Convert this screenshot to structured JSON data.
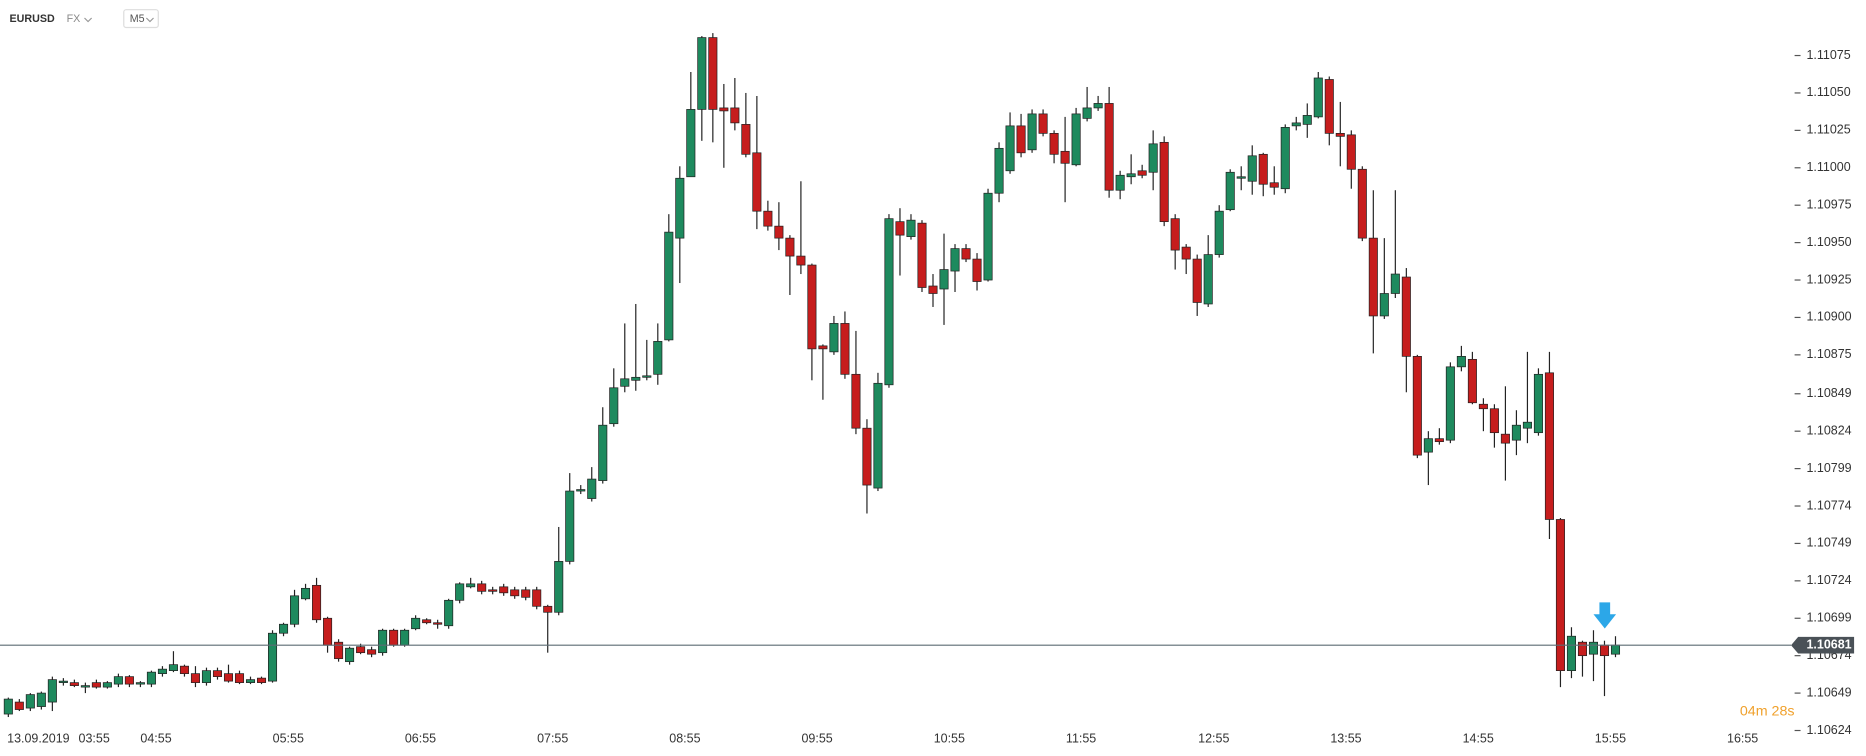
{
  "chart_data": {
    "type": "candlestick",
    "symbol": "EURUSD",
    "market": "FX",
    "timeframe": "M5",
    "up_color": "#1e8a5e",
    "down_color": "#c61d1d",
    "current_price": 1.10681,
    "countdown": "04m 28s",
    "x_labels": [
      "13.09.2019",
      "03:55",
      "04:55",
      "05:55",
      "06:55",
      "07:55",
      "08:55",
      "09:55",
      "10:55",
      "11:55",
      "12:55",
      "13:55",
      "14:55",
      "15:55",
      "16:55"
    ],
    "ylim": [
      1.10619,
      1.11112
    ],
    "yticks": [
      1.11075,
      {
        "value": 1.1105,
        "label": "1.11050"
      },
      1.11025,
      {
        "value": 1.11,
        "label": "1.11000"
      },
      1.10975,
      {
        "value": 1.1095,
        "label": "1.10950"
      },
      1.10925,
      {
        "value": 1.109,
        "label": "1.10900"
      },
      1.10875,
      1.10849,
      1.10824,
      1.10799,
      1.10774,
      1.10749,
      1.10724,
      1.10699,
      1.10674,
      1.10649,
      1.10624
    ],
    "ohlc": [
      [
        1.10635,
        1.10646,
        1.10633,
        1.10645
      ],
      [
        1.10643,
        1.10645,
        1.10637,
        1.10638
      ],
      [
        1.10639,
        1.10649,
        1.10637,
        1.10648
      ],
      [
        1.1064,
        1.1065,
        1.10638,
        1.10649
      ],
      [
        1.10643,
        1.1066,
        1.10637,
        1.10658
      ],
      [
        1.10656,
        1.10659,
        1.10654,
        1.10657
      ],
      [
        1.10656,
        1.10658,
        1.10653,
        1.10654
      ],
      [
        1.10653,
        1.10656,
        1.10649,
        1.10654
      ],
      [
        1.10656,
        1.10658,
        1.10652,
        1.10653
      ],
      [
        1.10653,
        1.10657,
        1.10652,
        1.10656
      ],
      [
        1.10655,
        1.10662,
        1.10653,
        1.1066
      ],
      [
        1.1066,
        1.10661,
        1.10653,
        1.10655
      ],
      [
        1.10655,
        1.10657,
        1.10653,
        1.10656
      ],
      [
        1.10655,
        1.10664,
        1.10653,
        1.10663
      ],
      [
        1.10662,
        1.10667,
        1.1066,
        1.10665
      ],
      [
        1.10664,
        1.10677,
        1.10663,
        1.10668
      ],
      [
        1.10667,
        1.10668,
        1.1066,
        1.10662
      ],
      [
        1.10662,
        1.10667,
        1.10653,
        1.10656
      ],
      [
        1.10656,
        1.10666,
        1.10654,
        1.10664
      ],
      [
        1.10664,
        1.10666,
        1.10658,
        1.1066
      ],
      [
        1.10662,
        1.10668,
        1.10656,
        1.10657
      ],
      [
        1.10662,
        1.10664,
        1.10655,
        1.10656
      ],
      [
        1.10656,
        1.1066,
        1.10655,
        1.10658
      ],
      [
        1.10659,
        1.1066,
        1.10655,
        1.10656
      ],
      [
        1.10657,
        1.10691,
        1.10656,
        1.10689
      ],
      [
        1.10689,
        1.10696,
        1.10687,
        1.10695
      ],
      [
        1.10695,
        1.10718,
        1.10693,
        1.10714
      ],
      [
        1.10712,
        1.10722,
        1.10711,
        1.10719
      ],
      [
        1.10721,
        1.10726,
        1.10696,
        1.10698
      ],
      [
        1.10699,
        1.107,
        1.10676,
        1.10681
      ],
      [
        1.10683,
        1.10685,
        1.1067,
        1.10672
      ],
      [
        1.1067,
        1.1068,
        1.10668,
        1.10679
      ],
      [
        1.1068,
        1.10682,
        1.10675,
        1.10676
      ],
      [
        1.10678,
        1.1068,
        1.10673,
        1.10675
      ],
      [
        1.10676,
        1.10692,
        1.10674,
        1.10691
      ],
      [
        1.10691,
        1.10692,
        1.1068,
        1.10681
      ],
      [
        1.10681,
        1.10692,
        1.1068,
        1.10691
      ],
      [
        1.10692,
        1.10701,
        1.10691,
        1.10699
      ],
      [
        1.10698,
        1.10699,
        1.10695,
        1.10696
      ],
      [
        1.10696,
        1.10698,
        1.10692,
        1.10695
      ],
      [
        1.10694,
        1.10712,
        1.10692,
        1.10711
      ],
      [
        1.10711,
        1.10723,
        1.10709,
        1.10722
      ],
      [
        1.1072,
        1.10726,
        1.10719,
        1.10722
      ],
      [
        1.10722,
        1.10724,
        1.10715,
        1.10717
      ],
      [
        1.10718,
        1.1072,
        1.10715,
        1.10717
      ],
      [
        1.1072,
        1.10722,
        1.10714,
        1.10716
      ],
      [
        1.10718,
        1.1072,
        1.10712,
        1.10714
      ],
      [
        1.10718,
        1.1072,
        1.10711,
        1.10713
      ],
      [
        1.10718,
        1.1072,
        1.10705,
        1.10707
      ],
      [
        1.10707,
        1.10708,
        1.10676,
        1.10703
      ],
      [
        1.10703,
        1.1076,
        1.10701,
        1.10737
      ],
      [
        1.10737,
        1.10796,
        1.10735,
        1.10784
      ],
      [
        1.10784,
        1.10788,
        1.10782,
        1.10785
      ],
      [
        1.10779,
        1.108,
        1.10777,
        1.10792
      ],
      [
        1.10791,
        1.1084,
        1.10789,
        1.10828
      ],
      [
        1.10829,
        1.10866,
        1.10827,
        1.10853
      ],
      [
        1.10854,
        1.10896,
        1.1085,
        1.10859
      ],
      [
        1.10858,
        1.10909,
        1.10851,
        1.1086
      ],
      [
        1.1086,
        1.10885,
        1.10858,
        1.10861
      ],
      [
        1.10862,
        1.10896,
        1.10855,
        1.10884
      ],
      [
        1.10885,
        1.10969,
        1.10884,
        1.10957
      ],
      [
        1.10953,
        1.11001,
        1.10923,
        1.10993
      ],
      [
        1.10994,
        1.11064,
        1.10994,
        1.11039
      ],
      [
        1.11039,
        1.11088,
        1.11018,
        1.11087
      ],
      [
        1.11087,
        1.1109,
        1.11017,
        1.11039
      ],
      [
        1.1104,
        1.11056,
        1.11,
        1.11038
      ],
      [
        1.1104,
        1.1106,
        1.11025,
        1.1103
      ],
      [
        1.11029,
        1.1105,
        1.11007,
        1.11009
      ],
      [
        1.1101,
        1.11048,
        1.10959,
        1.10971
      ],
      [
        1.10971,
        1.10978,
        1.10958,
        1.10961
      ],
      [
        1.10961,
        1.10977,
        1.10945,
        1.10953
      ],
      [
        1.10953,
        1.10955,
        1.10915,
        1.10941
      ],
      [
        1.10941,
        1.10991,
        1.10929,
        1.10935
      ],
      [
        1.10935,
        1.10936,
        1.10858,
        1.10879
      ],
      [
        1.10881,
        1.10882,
        1.10845,
        1.10879
      ],
      [
        1.10877,
        1.10901,
        1.10875,
        1.10896
      ],
      [
        1.10896,
        1.10904,
        1.10859,
        1.10862
      ],
      [
        1.10862,
        1.10891,
        1.10822,
        1.10826
      ],
      [
        1.10826,
        1.10832,
        1.10769,
        1.10788
      ],
      [
        1.10786,
        1.10863,
        1.10784,
        1.10856
      ],
      [
        1.10855,
        1.10969,
        1.10853,
        1.10966
      ],
      [
        1.10964,
        1.10973,
        1.10928,
        1.10955
      ],
      [
        1.10954,
        1.10969,
        1.10952,
        1.10965
      ],
      [
        1.10963,
        1.10965,
        1.10917,
        1.1092
      ],
      [
        1.10921,
        1.10929,
        1.10907,
        1.10916
      ],
      [
        1.10919,
        1.10956,
        1.10895,
        1.10932
      ],
      [
        1.10931,
        1.10949,
        1.10917,
        1.10946
      ],
      [
        1.10946,
        1.10949,
        1.10937,
        1.10939
      ],
      [
        1.10939,
        1.10943,
        1.10918,
        1.10924
      ],
      [
        1.10925,
        1.10986,
        1.10924,
        1.10983
      ],
      [
        1.10983,
        1.11017,
        1.10977,
        1.11013
      ],
      [
        1.10998,
        1.11037,
        1.10996,
        1.11028
      ],
      [
        1.11028,
        1.11036,
        1.11007,
        1.1101
      ],
      [
        1.11012,
        1.11039,
        1.1101,
        1.11036
      ],
      [
        1.11036,
        1.11039,
        1.11021,
        1.11023
      ],
      [
        1.11023,
        1.11025,
        1.11003,
        1.11009
      ],
      [
        1.11011,
        1.11034,
        1.10977,
        1.11003
      ],
      [
        1.11002,
        1.1104,
        1.11001,
        1.11036
      ],
      [
        1.11033,
        1.11054,
        1.11031,
        1.1104
      ],
      [
        1.1104,
        1.11048,
        1.11038,
        1.11043
      ],
      [
        1.11043,
        1.11054,
        1.1098,
        1.10985
      ],
      [
        1.10985,
        1.10998,
        1.10979,
        1.10995
      ],
      [
        1.10994,
        1.11009,
        1.10989,
        1.10996
      ],
      [
        1.10998,
        1.11002,
        1.10993,
        1.10995
      ],
      [
        1.10997,
        1.11025,
        1.10985,
        1.11016
      ],
      [
        1.11017,
        1.11021,
        1.10961,
        1.10964
      ],
      [
        1.10966,
        1.10969,
        1.10932,
        1.10945
      ],
      [
        1.10947,
        1.10949,
        1.10929,
        1.10939
      ],
      [
        1.10939,
        1.10942,
        1.10901,
        1.1091
      ],
      [
        1.10909,
        1.10955,
        1.10907,
        1.10942
      ],
      [
        1.10942,
        1.10975,
        1.1094,
        1.10971
      ],
      [
        1.10972,
        1.10999,
        1.10971,
        1.10997
      ],
      [
        1.10993,
        1.11001,
        1.10985,
        1.10994
      ],
      [
        1.10991,
        1.11015,
        1.10982,
        1.11008
      ],
      [
        1.11009,
        1.1101,
        1.10981,
        1.10989
      ],
      [
        1.1099,
        1.11001,
        1.10982,
        1.10987
      ],
      [
        1.10986,
        1.11029,
        1.10983,
        1.11027
      ],
      [
        1.11028,
        1.11034,
        1.11025,
        1.1103
      ],
      [
        1.11029,
        1.11043,
        1.1102,
        1.11035
      ],
      [
        1.11034,
        1.11064,
        1.11033,
        1.1106
      ],
      [
        1.11059,
        1.11061,
        1.11015,
        1.11023
      ],
      [
        1.11023,
        1.11044,
        1.11001,
        1.11021
      ],
      [
        1.11022,
        1.11025,
        1.10986,
        1.10999
      ],
      [
        1.10999,
        1.11001,
        1.10951,
        1.10953
      ],
      [
        1.10953,
        1.10985,
        1.10876,
        1.10901
      ],
      [
        1.10901,
        1.10953,
        1.10899,
        1.10916
      ],
      [
        1.10916,
        1.10985,
        1.10913,
        1.10929
      ],
      [
        1.10927,
        1.10933,
        1.1085,
        1.10874
      ],
      [
        1.10874,
        1.10875,
        1.10806,
        1.10808
      ],
      [
        1.1081,
        1.10824,
        1.10788,
        1.10819
      ],
      [
        1.10819,
        1.10826,
        1.10815,
        1.10817
      ],
      [
        1.10818,
        1.1087,
        1.10816,
        1.10867
      ],
      [
        1.10867,
        1.10881,
        1.10864,
        1.10874
      ],
      [
        1.10872,
        1.10877,
        1.10842,
        1.10843
      ],
      [
        1.10842,
        1.10846,
        1.10824,
        1.10839
      ],
      [
        1.10839,
        1.10842,
        1.10813,
        1.10823
      ],
      [
        1.10822,
        1.10854,
        1.10791,
        1.10816
      ],
      [
        1.10818,
        1.10838,
        1.10808,
        1.10828
      ],
      [
        1.10826,
        1.10877,
        1.10816,
        1.1083
      ],
      [
        1.10823,
        1.10866,
        1.10821,
        1.10862
      ],
      [
        1.10863,
        1.10877,
        1.10752,
        1.10765
      ],
      [
        1.10765,
        1.10766,
        1.10653,
        1.10664
      ],
      [
        1.10664,
        1.10693,
        1.10659,
        1.10687
      ],
      [
        1.10683,
        1.10684,
        1.1066,
        1.10674
      ],
      [
        1.10675,
        1.10691,
        1.10657,
        1.10683
      ],
      [
        1.10681,
        1.10684,
        1.10647,
        1.10674
      ],
      [
        1.10675,
        1.10687,
        1.10673,
        1.10681
      ]
    ]
  }
}
